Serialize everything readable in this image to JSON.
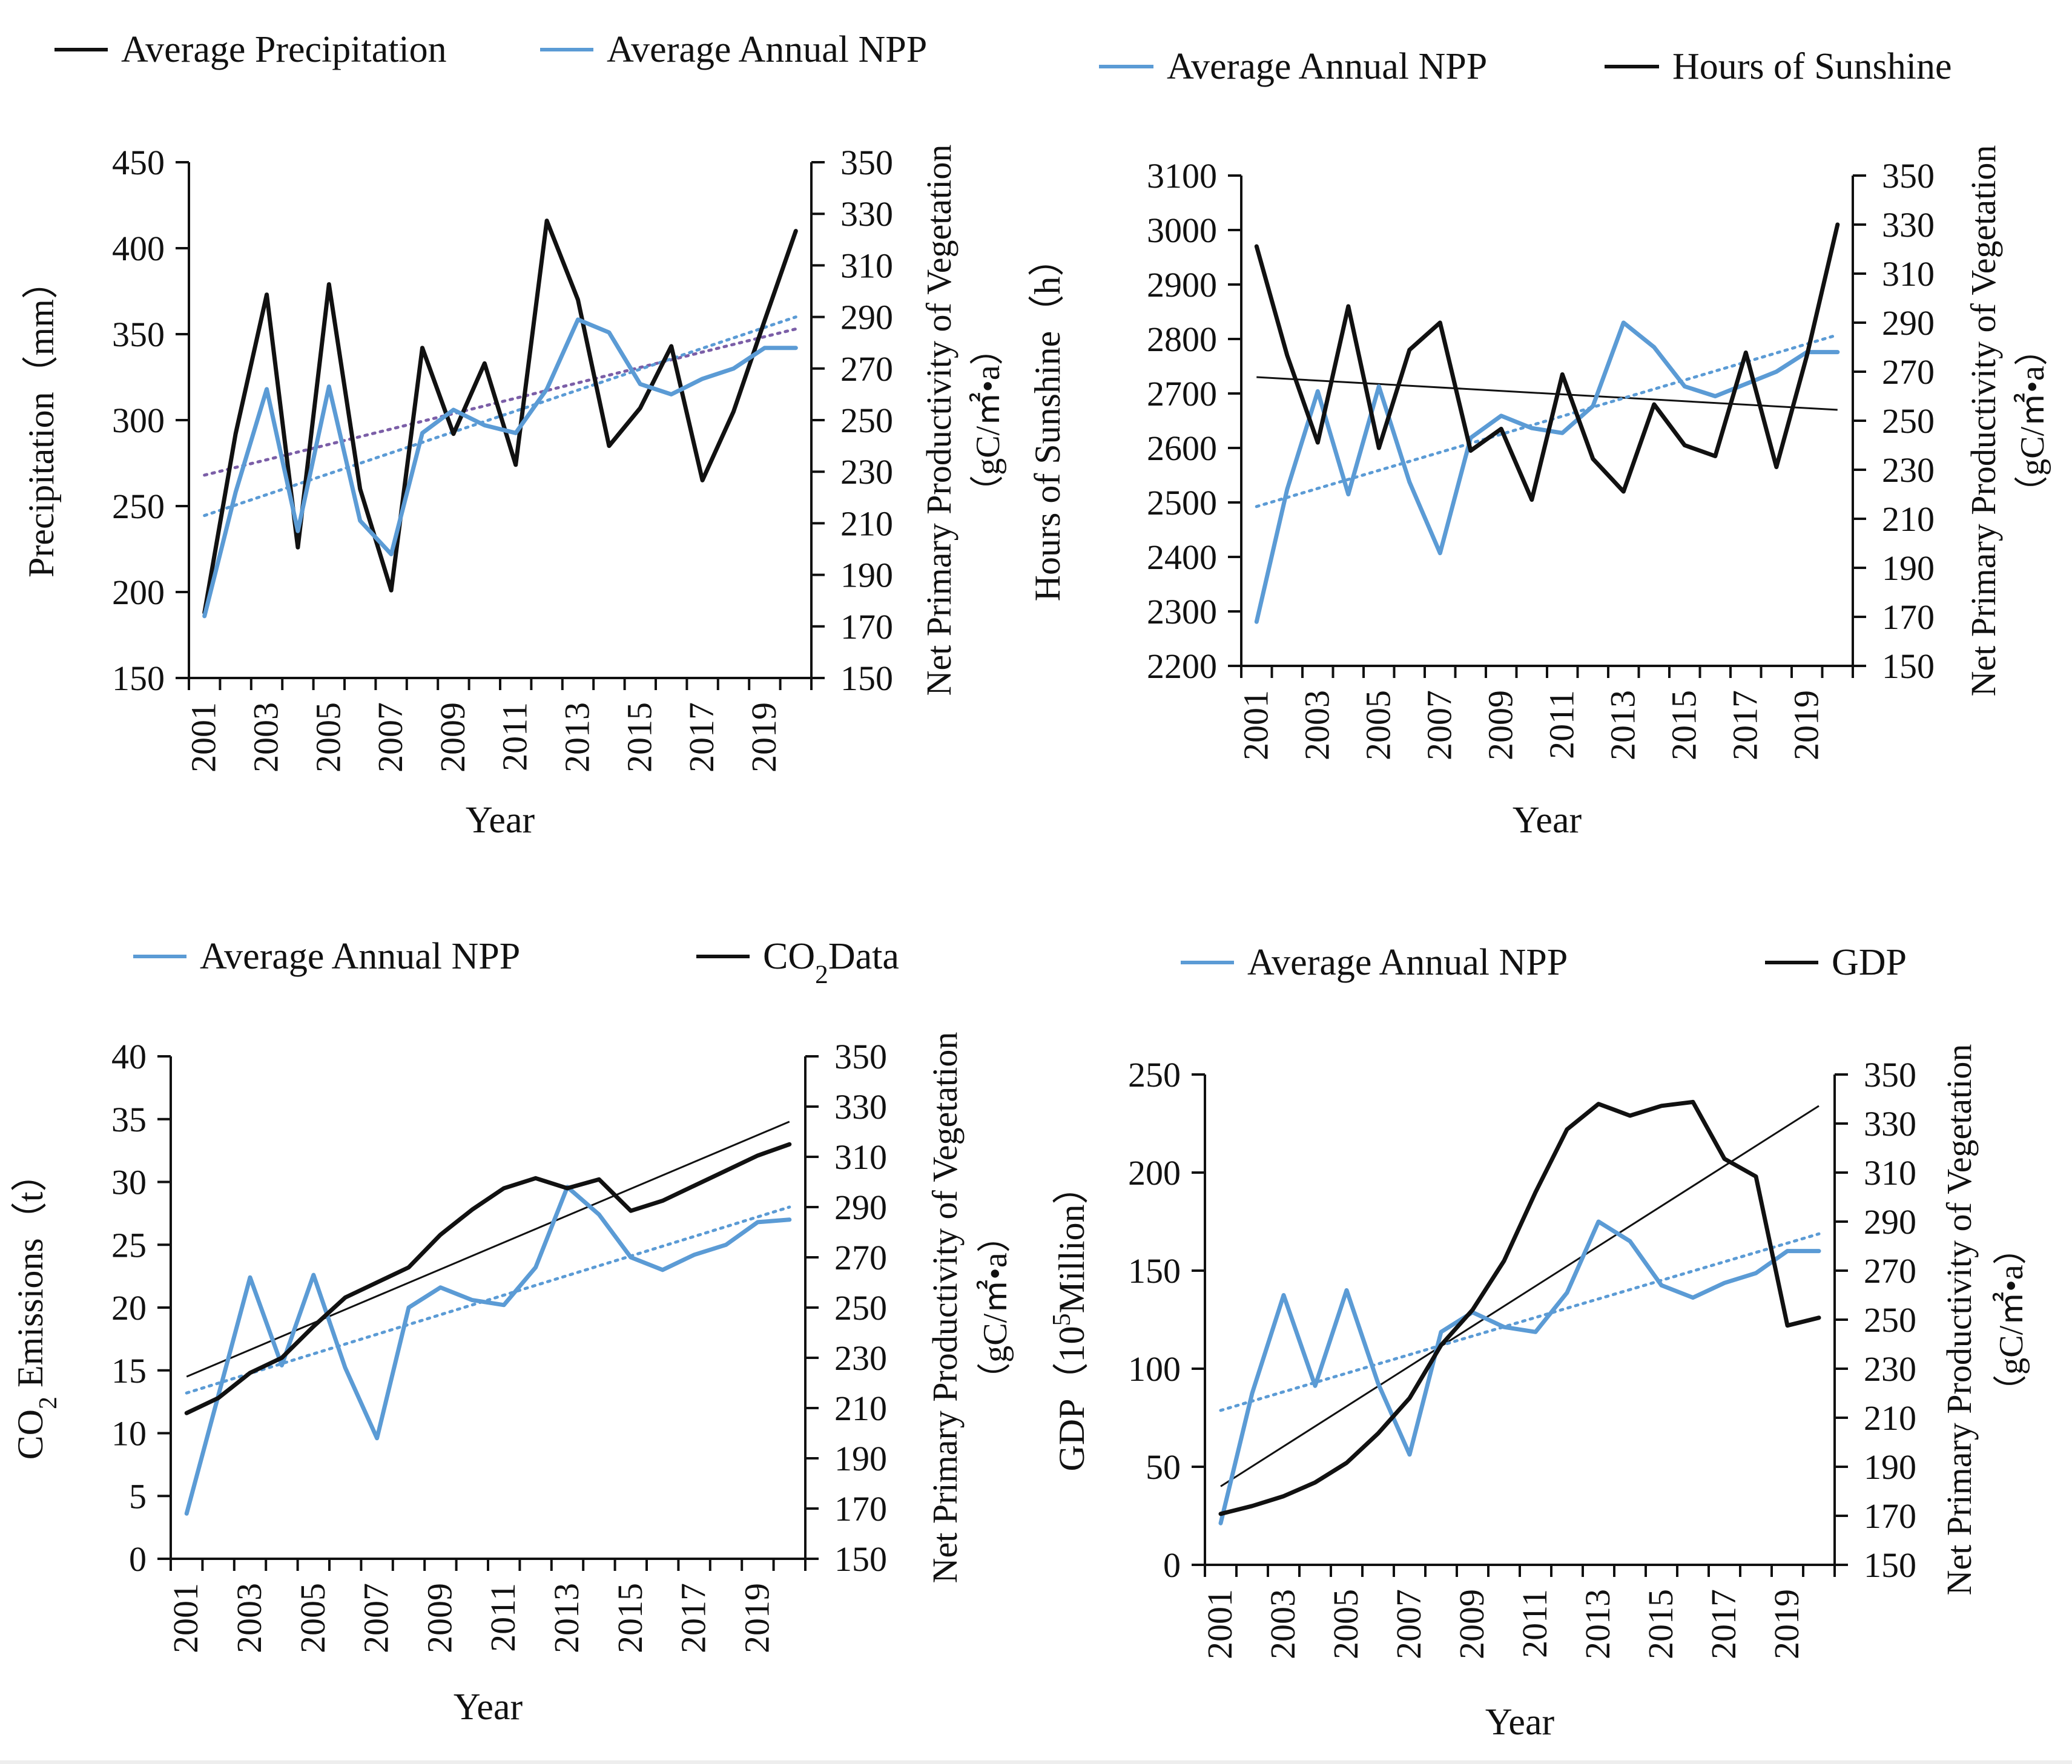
{
  "chart_data": [
    {
      "type": "line",
      "title": "",
      "xlabel": "Year",
      "ylabel": "Precipitation（mm）",
      "ylabel_right": [
        "Net Primary Productivity of Vegetation",
        "（gC/㎡•a）"
      ],
      "x": [
        2001,
        2002,
        2003,
        2004,
        2005,
        2006,
        2007,
        2008,
        2009,
        2010,
        2011,
        2012,
        2013,
        2014,
        2015,
        2016,
        2017,
        2018,
        2019,
        2020
      ],
      "x_tick_labels": [
        "2001",
        "2003",
        "2005",
        "2007",
        "2009",
        "2011",
        "2013",
        "2015",
        "2017",
        "2019"
      ],
      "ylim": [
        150,
        450
      ],
      "y_ticks": [
        150,
        200,
        250,
        300,
        350,
        400,
        450
      ],
      "y2lim": [
        150,
        350
      ],
      "y2_ticks": [
        150,
        170,
        190,
        210,
        230,
        250,
        270,
        290,
        310,
        330,
        350
      ],
      "legend_position": "top",
      "series": [
        {
          "name": "Average Precipitation",
          "axis": "left",
          "color": "#111111",
          "values": [
            188,
            292,
            373,
            226,
            379,
            260,
            201,
            342,
            292,
            333,
            274,
            416,
            370,
            285,
            307,
            343,
            265,
            305,
            358,
            410
          ]
        },
        {
          "name": "Average Annual NPP",
          "axis": "right",
          "color": "#5b9bd5",
          "values": [
            174,
            222,
            262,
            207,
            263,
            211,
            198,
            245,
            254,
            248,
            245,
            262,
            289,
            284,
            264,
            260,
            266,
            270,
            278,
            278
          ]
        }
      ],
      "trendlines": [
        {
          "of": "Average Precipitation",
          "axis": "left",
          "style": "dotted",
          "color": "#7b5ea7",
          "start": 268,
          "end": 353
        },
        {
          "of": "Average Annual NPP",
          "axis": "right",
          "style": "dotted",
          "color": "#5b9bd5",
          "start": 213,
          "end": 290
        }
      ]
    },
    {
      "type": "line",
      "title": "",
      "xlabel": "Year",
      "ylabel": "Hours of  Sunshine（h）",
      "ylabel_right": [
        "Net Primary Productivity of  Vegetation",
        "（gC/㎡•a）"
      ],
      "x": [
        2001,
        2002,
        2003,
        2004,
        2005,
        2006,
        2007,
        2008,
        2009,
        2010,
        2011,
        2012,
        2013,
        2014,
        2015,
        2016,
        2017,
        2018,
        2019,
        2020
      ],
      "x_tick_labels": [
        "2001",
        "2003",
        "2005",
        "2007",
        "2009",
        "2011",
        "2013",
        "2015",
        "2017",
        "2019"
      ],
      "ylim": [
        2200,
        3100
      ],
      "y_ticks": [
        2200,
        2300,
        2400,
        2500,
        2600,
        2700,
        2800,
        2900,
        3000,
        3100
      ],
      "y2lim": [
        150,
        350
      ],
      "y2_ticks": [
        150,
        170,
        190,
        210,
        230,
        250,
        270,
        290,
        310,
        330,
        350
      ],
      "legend_position": "top",
      "series": [
        {
          "name": "Average Annual NPP",
          "axis": "right",
          "color": "#5b9bd5",
          "values": [
            168,
            222,
            262,
            220,
            264,
            225,
            196,
            243,
            252,
            247,
            245,
            256,
            290,
            280,
            264,
            260,
            265,
            270,
            278,
            278
          ]
        },
        {
          "name": "Hours of Sunshine",
          "axis": "left",
          "color": "#111111",
          "values": [
            2970,
            2770,
            2610,
            2860,
            2600,
            2780,
            2830,
            2595,
            2635,
            2505,
            2735,
            2580,
            2520,
            2680,
            2605,
            2585,
            2775,
            2565,
            2770,
            3010
          ]
        }
      ],
      "trendlines": [
        {
          "of": "Hours of Sunshine",
          "axis": "left",
          "style": "solid",
          "color": "#111111",
          "start": 2730,
          "end": 2670
        },
        {
          "of": "Average Annual NPP",
          "axis": "right",
          "style": "dotted",
          "color": "#5b9bd5",
          "start": 215,
          "end": 285
        }
      ]
    },
    {
      "type": "line",
      "title": "",
      "xlabel": "Year",
      "ylabel": "CO₂  Emissions（t）",
      "ylabel_right": [
        "Net Primary Productivity of Vegetation",
        "（gC/㎡•a）"
      ],
      "x": [
        2001,
        2002,
        2003,
        2004,
        2005,
        2006,
        2007,
        2008,
        2009,
        2010,
        2011,
        2012,
        2013,
        2014,
        2015,
        2016,
        2017,
        2018,
        2019,
        2020
      ],
      "x_tick_labels": [
        "2001",
        "2003",
        "2005",
        "2007",
        "2009",
        "2011",
        "2013",
        "2015",
        "2017",
        "2019"
      ],
      "ylim": [
        0,
        40
      ],
      "y_ticks": [
        0,
        5,
        10,
        15,
        20,
        25,
        30,
        35,
        40
      ],
      "y2lim": [
        150,
        350
      ],
      "y2_ticks": [
        150,
        170,
        190,
        210,
        230,
        250,
        270,
        290,
        310,
        330,
        350
      ],
      "legend_position": "top",
      "series": [
        {
          "name": "Average Annual NPP",
          "axis": "right",
          "color": "#5b9bd5",
          "values": [
            168,
            215,
            262,
            227,
            263,
            226,
            198,
            250,
            258,
            253,
            251,
            266,
            298,
            287,
            270,
            265,
            271,
            275,
            284,
            285
          ]
        },
        {
          "name": "CO2Data",
          "axis": "left",
          "color": "#111111",
          "values": [
            11.6,
            12.8,
            14.8,
            16.0,
            18.5,
            20.8,
            22.0,
            23.2,
            25.8,
            27.8,
            29.5,
            30.3,
            29.5,
            30.2,
            27.7,
            28.5,
            29.7,
            30.9,
            32.1,
            33.0
          ]
        }
      ],
      "trendlines": [
        {
          "of": "CO2Data",
          "axis": "left",
          "style": "solid",
          "color": "#111111",
          "start": 14.5,
          "end": 34.8
        },
        {
          "of": "Average Annual NPP",
          "axis": "right",
          "style": "dotted",
          "color": "#5b9bd5",
          "start": 216,
          "end": 290
        }
      ]
    },
    {
      "type": "line",
      "title": "",
      "xlabel": "Year",
      "ylabel": "GDP（10⁵Million）",
      "ylabel_right": [
        "Net Primary Productivity of  Vegetation",
        "（gC/㎡•a）"
      ],
      "x": [
        2001,
        2002,
        2003,
        2004,
        2005,
        2006,
        2007,
        2008,
        2009,
        2010,
        2011,
        2012,
        2013,
        2014,
        2015,
        2016,
        2017,
        2018,
        2019,
        2020
      ],
      "x_tick_labels": [
        "2001",
        "2003",
        "2005",
        "2007",
        "2009",
        "2011",
        "2013",
        "2015",
        "2017",
        "2019"
      ],
      "ylim": [
        0,
        250
      ],
      "y_ticks": [
        0,
        50,
        100,
        150,
        200,
        250
      ],
      "y2lim": [
        150,
        350
      ],
      "y2_ticks": [
        150,
        170,
        190,
        210,
        230,
        250,
        270,
        290,
        310,
        330,
        350
      ],
      "legend_position": "top",
      "series": [
        {
          "name": "Average Annual NPP",
          "axis": "right",
          "color": "#5b9bd5",
          "values": [
            167,
            220,
            260,
            223,
            262,
            224,
            195,
            245,
            253,
            247,
            245,
            261,
            290,
            282,
            264,
            259,
            265,
            269,
            278,
            278
          ]
        },
        {
          "name": "GDP",
          "axis": "left",
          "color": "#111111",
          "values": [
            26,
            30,
            35,
            42,
            52,
            67,
            85,
            112,
            130,
            155,
            190,
            222,
            235,
            229,
            234,
            236,
            207,
            198,
            122,
            126
          ]
        }
      ],
      "trendlines": [
        {
          "of": "GDP",
          "axis": "left",
          "style": "solid",
          "color": "#111111",
          "start": 40,
          "end": 234
        },
        {
          "of": "Average Annual NPP",
          "axis": "right",
          "style": "dotted",
          "color": "#5b9bd5",
          "start": 213,
          "end": 285
        }
      ]
    }
  ]
}
